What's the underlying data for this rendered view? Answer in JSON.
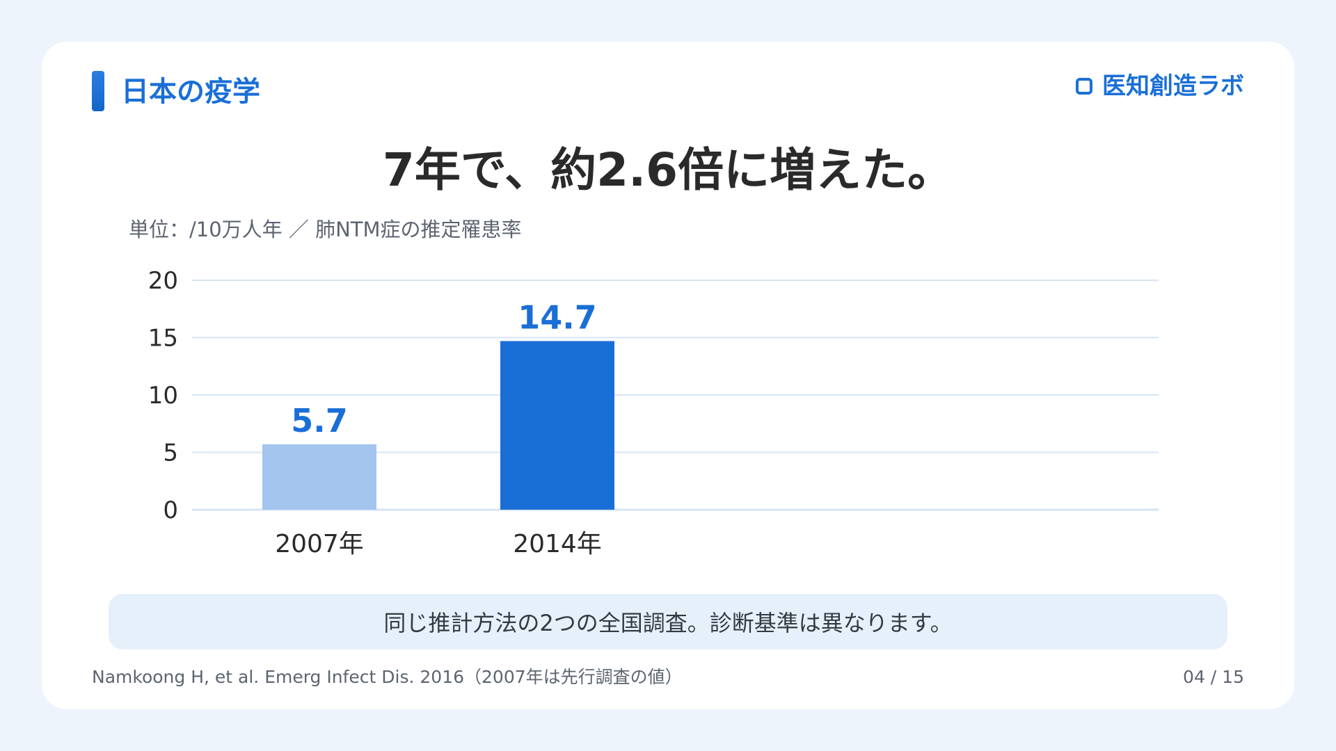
{
  "header": {
    "section_title": "日本の疫学",
    "brand": "医知創造ラボ",
    "brand_icon": "rounded-square-icon"
  },
  "headline": "7年で、約2.6倍に増えた。",
  "chart_data": {
    "type": "bar",
    "title": "",
    "unit_label": "単位：/10万人年 ／ 肺NTM症の推定罹患率",
    "categories": [
      "2007年",
      "2014年"
    ],
    "values": [
      5.7,
      14.7
    ],
    "value_labels": [
      "5.7",
      "14.7"
    ],
    "bar_colors": [
      "#a3c5ee",
      "#1a6fd6"
    ],
    "ylim": [
      0,
      20
    ],
    "yticks": [
      "0",
      "5",
      "10",
      "15",
      "20"
    ],
    "grid": true,
    "xlabel": "",
    "ylabel": ""
  },
  "note": "同じ推計方法の2つの全国調査。診断基準は異なります。",
  "footer": {
    "source": "Namkoong H, et al. Emerg Infect Dis. 2016（2007年は先行調査の値）",
    "page": "04 / 15"
  },
  "colors": {
    "accent": "#1a6fd6",
    "background": "#edf4fc",
    "grid": "#d6e4f5"
  }
}
